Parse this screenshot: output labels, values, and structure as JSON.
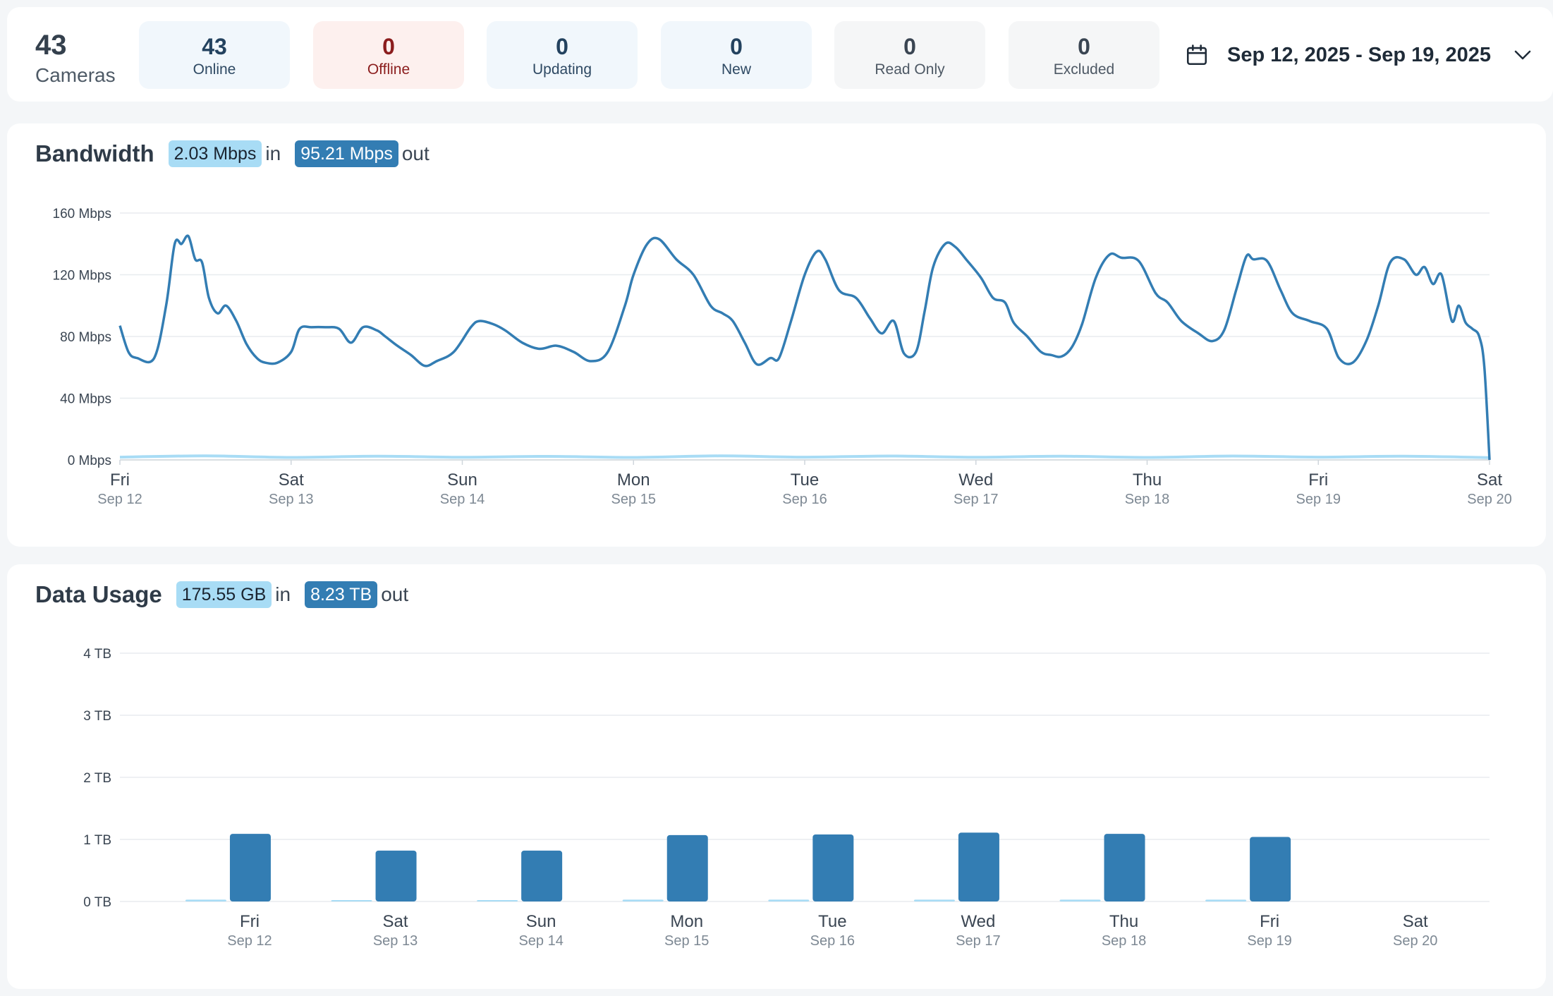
{
  "summary": {
    "cameras_count": "43",
    "cameras_label": "Cameras",
    "stats": [
      {
        "value": "43",
        "label": "Online"
      },
      {
        "value": "0",
        "label": "Offline"
      },
      {
        "value": "0",
        "label": "Updating"
      },
      {
        "value": "0",
        "label": "New"
      },
      {
        "value": "0",
        "label": "Read Only"
      },
      {
        "value": "0",
        "label": "Excluded"
      }
    ],
    "date_range": "Sep 12, 2025 - Sep 19, 2025"
  },
  "bandwidth": {
    "title": "Bandwidth",
    "in_value": "2.03 Mbps",
    "in_label": "in",
    "out_value": "95.21 Mbps",
    "out_label": "out"
  },
  "data_usage": {
    "title": "Data Usage",
    "in_value": "175.55 GB",
    "in_label": "in",
    "out_value": "8.23 TB",
    "out_label": "out"
  },
  "colors": {
    "out": "#337db3",
    "in": "#a8dcf5",
    "grid": "#e8ecef"
  },
  "chart_data": [
    {
      "type": "line",
      "title": "Bandwidth",
      "ylabel": "Mbps",
      "ylim": [
        0,
        160
      ],
      "y_ticks": [
        "0 Mbps",
        "40 Mbps",
        "80 Mbps",
        "120 Mbps",
        "160 Mbps"
      ],
      "y_tick_values": [
        0,
        40,
        80,
        120,
        160
      ],
      "x_range": [
        0,
        8
      ],
      "x_ticks": [
        {
          "day": "Fri",
          "date": "Sep 12"
        },
        {
          "day": "Sat",
          "date": "Sep 13"
        },
        {
          "day": "Sun",
          "date": "Sep 14"
        },
        {
          "day": "Mon",
          "date": "Sep 15"
        },
        {
          "day": "Tue",
          "date": "Sep 16"
        },
        {
          "day": "Wed",
          "date": "Sep 17"
        },
        {
          "day": "Thu",
          "date": "Sep 18"
        },
        {
          "day": "Fri",
          "date": "Sep 19"
        },
        {
          "day": "Sat",
          "date": "Sep 20"
        }
      ],
      "series": [
        {
          "name": "out",
          "x": [
            0,
            0.05,
            0.1,
            0.2,
            0.27,
            0.32,
            0.36,
            0.4,
            0.44,
            0.48,
            0.52,
            0.57,
            0.62,
            0.68,
            0.74,
            0.8,
            0.85,
            0.92,
            1.0,
            1.05,
            1.12,
            1.2,
            1.28,
            1.35,
            1.42,
            1.5,
            1.55,
            1.62,
            1.7,
            1.78,
            1.85,
            1.95,
            2.05,
            2.1,
            2.18,
            2.25,
            2.35,
            2.45,
            2.55,
            2.65,
            2.75,
            2.85,
            2.95,
            3.0,
            3.08,
            3.15,
            3.25,
            3.35,
            3.45,
            3.52,
            3.58,
            3.65,
            3.72,
            3.8,
            3.85,
            3.92,
            4.0,
            4.07,
            4.12,
            4.2,
            4.3,
            4.38,
            4.45,
            4.52,
            4.58,
            4.65,
            4.7,
            4.75,
            4.82,
            4.88,
            4.95,
            5.03,
            5.1,
            5.17,
            5.22,
            5.3,
            5.38,
            5.44,
            5.5,
            5.56,
            5.62,
            5.7,
            5.78,
            5.85,
            5.95,
            6.05,
            6.12,
            6.2,
            6.3,
            6.38,
            6.45,
            6.52,
            6.58,
            6.62,
            6.7,
            6.78,
            6.85,
            6.95,
            7.05,
            7.12,
            7.2,
            7.28,
            7.35,
            7.42,
            7.5,
            7.57,
            7.62,
            7.67,
            7.72,
            7.78,
            7.82,
            7.86,
            7.9,
            7.94,
            7.97,
            8.0
          ],
          "values": [
            87,
            70,
            66,
            66,
            100,
            140,
            140,
            145,
            130,
            128,
            105,
            95,
            100,
            90,
            75,
            66,
            63,
            63,
            70,
            85,
            86,
            86,
            85,
            76,
            86,
            84,
            80,
            74,
            68,
            61,
            64,
            70,
            86,
            90,
            88,
            84,
            76,
            72,
            74,
            70,
            64,
            70,
            100,
            120,
            140,
            143,
            130,
            120,
            100,
            95,
            90,
            76,
            62,
            66,
            66,
            90,
            120,
            135,
            130,
            110,
            105,
            92,
            82,
            90,
            69,
            70,
            96,
            125,
            140,
            138,
            129,
            118,
            105,
            102,
            89,
            80,
            70,
            68,
            67,
            73,
            88,
            118,
            133,
            131,
            129,
            108,
            102,
            90,
            82,
            77,
            84,
            110,
            132,
            130,
            129,
            110,
            95,
            90,
            85,
            66,
            63,
            77,
            100,
            128,
            130,
            120,
            125,
            114,
            120,
            90,
            100,
            89,
            85,
            80,
            60,
            0
          ]
        },
        {
          "name": "in",
          "x": [
            0,
            0.5,
            1.0,
            1.5,
            2.0,
            2.5,
            3.0,
            3.5,
            4.0,
            4.5,
            5.0,
            5.5,
            6.0,
            6.5,
            7.0,
            7.5,
            8.0
          ],
          "values": [
            1.8,
            2.6,
            1.6,
            2.4,
            1.7,
            2.3,
            1.6,
            2.6,
            1.8,
            2.5,
            1.7,
            2.4,
            1.6,
            2.5,
            1.8,
            2.4,
            1.5
          ]
        }
      ]
    },
    {
      "type": "bar",
      "title": "Data Usage",
      "ylabel": "TB",
      "ylim": [
        0,
        4
      ],
      "y_ticks": [
        "0 TB",
        "1 TB",
        "2 TB",
        "3 TB",
        "4 TB"
      ],
      "y_tick_values": [
        0,
        1,
        2,
        3,
        4
      ],
      "categories": [
        {
          "day": "Fri",
          "date": "Sep 12"
        },
        {
          "day": "Sat",
          "date": "Sep 13"
        },
        {
          "day": "Sun",
          "date": "Sep 14"
        },
        {
          "day": "Mon",
          "date": "Sep 15"
        },
        {
          "day": "Tue",
          "date": "Sep 16"
        },
        {
          "day": "Wed",
          "date": "Sep 17"
        },
        {
          "day": "Thu",
          "date": "Sep 18"
        },
        {
          "day": "Fri",
          "date": "Sep 19"
        },
        {
          "day": "Sat",
          "date": "Sep 20"
        }
      ],
      "series": [
        {
          "name": "in",
          "values": [
            0.03,
            0.02,
            0.02,
            0.03,
            0.03,
            0.03,
            0.03,
            0.03,
            0
          ]
        },
        {
          "name": "out",
          "values": [
            1.09,
            0.82,
            0.82,
            1.07,
            1.08,
            1.11,
            1.09,
            1.04,
            0
          ]
        }
      ]
    }
  ]
}
